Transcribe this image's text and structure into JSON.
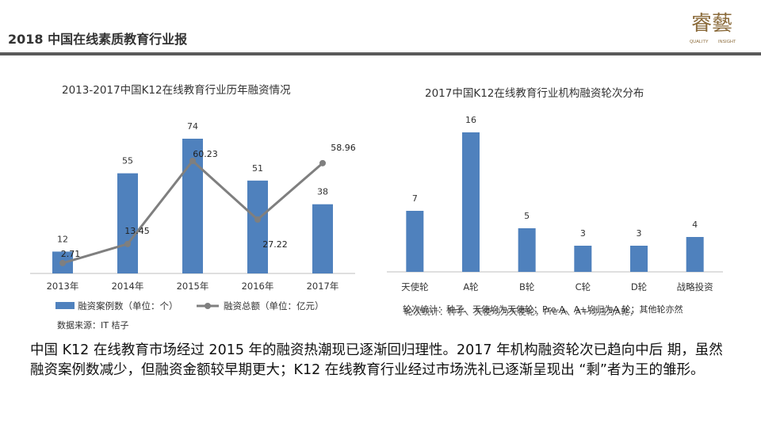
{
  "header": {
    "title": "2018 中国在线素质教育行业报"
  },
  "logo": {
    "line1": "QUALITY",
    "line2": "INSIGHT",
    "glyphs": "睿藝"
  },
  "chart_data": [
    {
      "type": "bar",
      "title": "2013-2017中国K12在线教育行业历年融资情况",
      "categories": [
        "2013年",
        "2014年",
        "2015年",
        "2016年",
        "2017年"
      ],
      "series": [
        {
          "name": "融资案例数（单位：个）",
          "type": "bar",
          "color": "#4f81bd",
          "values": [
            12,
            55,
            74,
            51,
            38
          ]
        },
        {
          "name": "融资总额（单位：亿元）",
          "type": "line",
          "color": "#7f7f7f",
          "values": [
            2.71,
            13.45,
            60.23,
            27.22,
            58.96
          ]
        }
      ],
      "source": "数据来源：IT 桔子"
    },
    {
      "type": "bar",
      "title": "2017中国K12在线教育行业机构融资轮次分布",
      "categories": [
        "天使轮",
        "A轮",
        "B轮",
        "C轮",
        "D轮",
        "战略投资"
      ],
      "values": [
        7,
        16,
        5,
        3,
        3,
        4
      ],
      "color": "#4f81bd",
      "note_a": "轮次统计：种子、天使均为天使轮；Pre-A、A+均归为A 轮；其他轮亦然",
      "note_b": "轮次统计：种子、天使均为天使轮，Pre-A、A+均归为A轮，"
    }
  ],
  "summary": "中国 K12 在线教育市场经过 2015 年的融资热潮现已逐渐回归理性。2017 年机构融资轮次已趋向中后 期，虽然融资案例数减少，但融资金额较早期更大；K12 在线教育行业经过市场洗礼已逐渐呈现出 “剩”者为王的雏形。"
}
